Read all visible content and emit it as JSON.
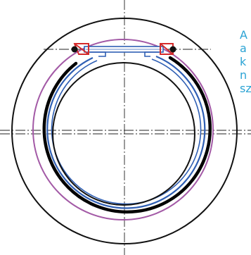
{
  "caption": {
    "lines": [
      "A",
      "a",
      "k",
      "n",
      "sz"
    ]
  },
  "colors": {
    "outline": "#111111",
    "centerline": "#222222",
    "purple_circle": "#a35aa6",
    "blue_ring": "#2f5fb4",
    "clamp_red": "#d42a2a",
    "caption_text": "#2ba3d4"
  },
  "icons": {
    "hinge-pin": "filled-dot"
  }
}
